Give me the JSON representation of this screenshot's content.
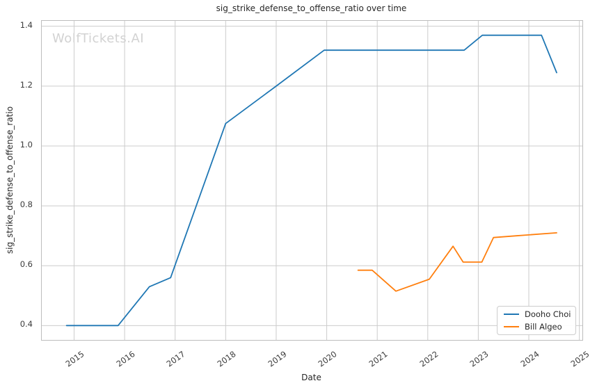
{
  "watermark": "WolfTickets.AI",
  "colors": {
    "grid": "#cccccc",
    "spine": "#bdbdbd",
    "text": "#262626",
    "tick_text": "#3b3b3b",
    "watermark": "#d2d2d2",
    "background": "#ffffff"
  },
  "chart_data": {
    "type": "line",
    "title": "sig_strike_defense_to_offense_ratio over time",
    "xlabel": "Date",
    "ylabel": "sig_strike_defense_to_offense_ratio",
    "xlim": [
      2014.36,
      2025.06
    ],
    "ylim": [
      0.352,
      1.418
    ],
    "xticks": [
      2015,
      2016,
      2017,
      2018,
      2019,
      2020,
      2021,
      2022,
      2023,
      2024,
      2025
    ],
    "yticks": [
      0.4,
      0.6,
      0.8,
      1.0,
      1.2,
      1.4
    ],
    "grid": true,
    "legend_position": "lower right",
    "series": [
      {
        "name": "Dooho Choi",
        "color": "#1f77b4",
        "x": [
          2014.85,
          2015.87,
          2016.49,
          2016.91,
          2018.0,
          2019.0,
          2019.95,
          2022.72,
          2023.08,
          2024.25,
          2024.55
        ],
        "y": [
          0.4,
          0.4,
          0.53,
          0.56,
          1.075,
          1.2,
          1.32,
          1.32,
          1.37,
          1.37,
          1.245
        ]
      },
      {
        "name": "Bill Algeo",
        "color": "#ff7f0e",
        "x": [
          2020.62,
          2020.9,
          2021.37,
          2022.03,
          2022.5,
          2022.7,
          2023.07,
          2023.3,
          2023.75,
          2024.55
        ],
        "y": [
          0.585,
          0.585,
          0.515,
          0.555,
          0.665,
          0.612,
          0.612,
          0.694,
          0.7,
          0.71
        ]
      }
    ]
  }
}
